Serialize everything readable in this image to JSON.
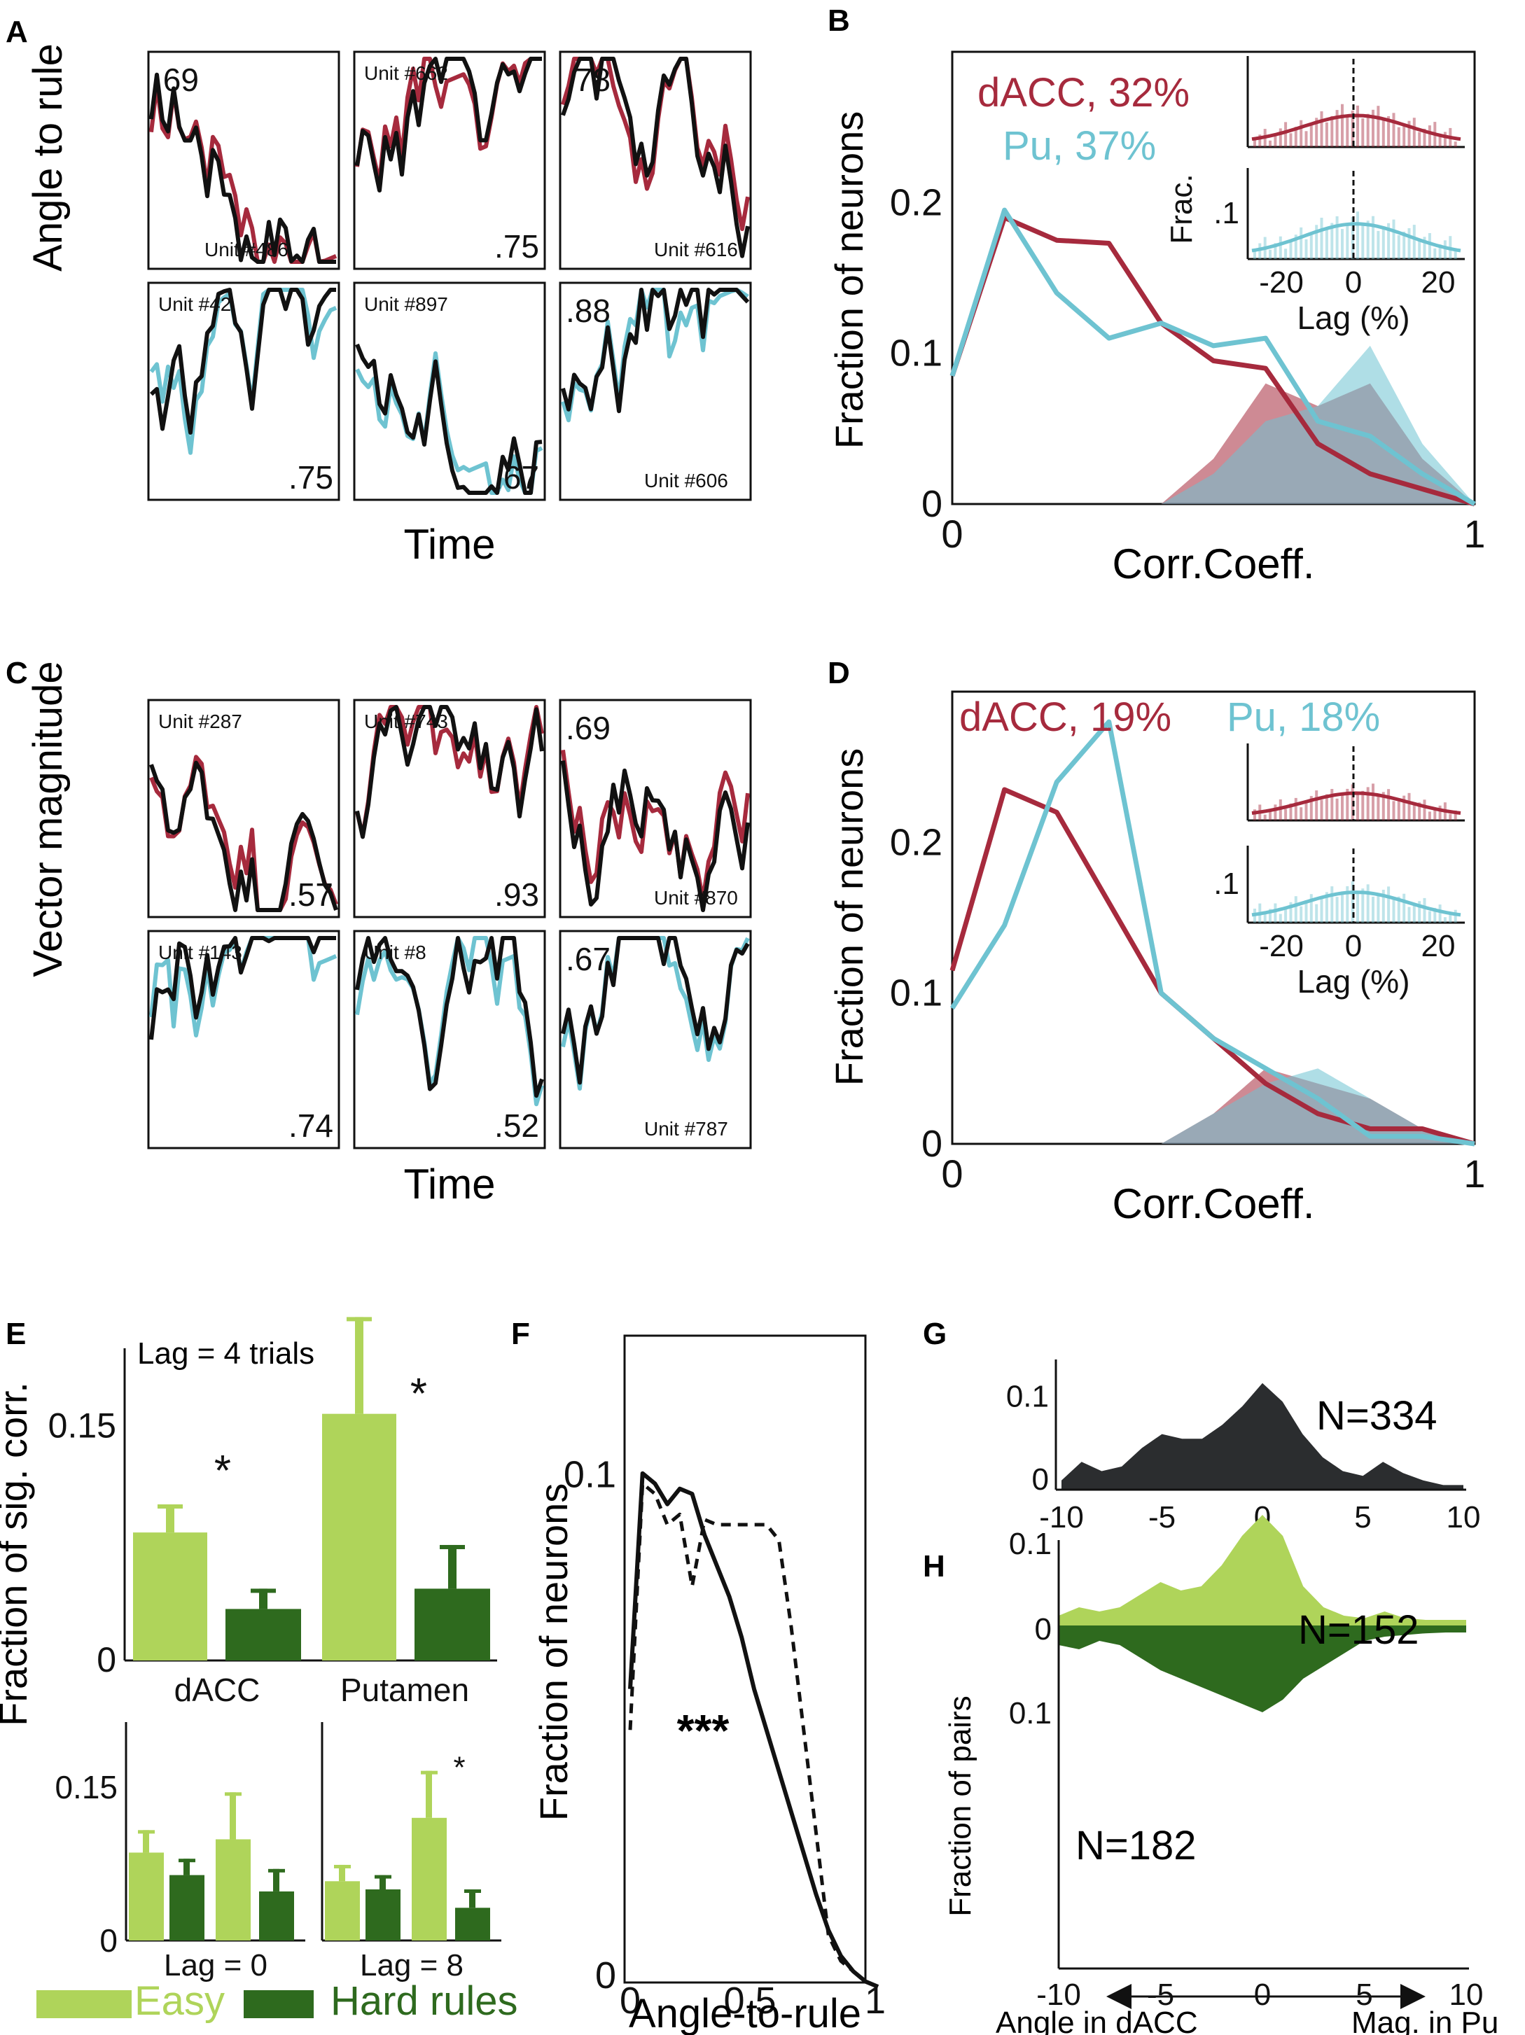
{
  "colors": {
    "dacc": "#A62A3D",
    "pu": "#6EC3D1",
    "easy": "#AFD45A",
    "hard": "#2E6A1E",
    "black": "#111111",
    "overlap": "#7E8E9A",
    "dark_fill": "#2B2D2F"
  },
  "panel_letters": {
    "A": "A",
    "B": "B",
    "C": "C",
    "D": "D",
    "E": "E",
    "F": "F",
    "G": "G",
    "H": "H"
  },
  "A": {
    "ylabel": "Angle to rule",
    "xlabel": "Time",
    "units": [
      {
        "label": "Unit #486",
        "r": ".69",
        "color": "dacc"
      },
      {
        "label": "Unit #662",
        "r": ".75",
        "color": "dacc"
      },
      {
        "label": "Unit #616",
        "r": ".78",
        "color": "dacc"
      },
      {
        "label": "Unit #42",
        "r": ".75",
        "color": "pu"
      },
      {
        "label": "Unit #897",
        "r": ".67",
        "color": "pu"
      },
      {
        "label": "Unit #606",
        "r": ".88",
        "color": "pu"
      }
    ]
  },
  "C": {
    "ylabel": "Vector magnitude",
    "xlabel": "Time",
    "units": [
      {
        "label": "Unit #287",
        "r": ".57",
        "color": "dacc"
      },
      {
        "label": "Unit #743",
        "r": ".93",
        "color": "dacc"
      },
      {
        "label": "Unit #870",
        "r": ".69",
        "color": "dacc"
      },
      {
        "label": "Unit #143",
        "r": ".74",
        "color": "pu"
      },
      {
        "label": "Unit #8",
        "r": ".52",
        "color": "pu"
      },
      {
        "label": "Unit #787",
        "r": ".67",
        "color": "pu"
      }
    ]
  },
  "chart_data": [
    {
      "id": "B",
      "type": "line",
      "xlabel": "Corr.Coeff.",
      "ylabel": "Fraction of neurons",
      "xlim": [
        0,
        1
      ],
      "ylim": [
        0,
        0.3
      ],
      "xticks": [
        "0",
        "1"
      ],
      "yticks": [
        "0",
        "0.1",
        "0.2"
      ],
      "legend": [
        {
          "name": "dACC, 32%",
          "color": "dacc"
        },
        {
          "name": "Pu, 37%",
          "color": "pu"
        }
      ],
      "x": [
        0,
        0.1,
        0.2,
        0.3,
        0.4,
        0.5,
        0.6,
        0.7,
        0.8,
        0.9,
        1.0
      ],
      "series": [
        {
          "name": "dACC, 32%",
          "values": [
            0.085,
            0.19,
            0.175,
            0.173,
            0.12,
            0.095,
            0.09,
            0.04,
            0.02,
            0.01,
            0
          ]
        },
        {
          "name": "Pu, 37%",
          "values": [
            0.085,
            0.195,
            0.14,
            0.11,
            0.12,
            0.105,
            0.11,
            0.055,
            0.045,
            0.02,
            0
          ]
        }
      ],
      "shaded": [
        {
          "name": "dACC",
          "x": [
            0.4,
            0.5,
            0.6,
            0.7,
            0.8,
            0.9,
            1.0
          ],
          "values": [
            0,
            0.03,
            0.08,
            0.065,
            0.08,
            0.03,
            0
          ]
        },
        {
          "name": "Pu",
          "x": [
            0.4,
            0.5,
            0.6,
            0.7,
            0.8,
            0.9,
            1.0
          ],
          "values": [
            0,
            0.02,
            0.055,
            0.065,
            0.105,
            0.04,
            0
          ]
        }
      ],
      "inset": {
        "xlabel": "Lag (%)",
        "ylabel": "Frac.",
        "xticks": [
          "-20",
          "0",
          "20"
        ],
        "ytick": ".1"
      }
    },
    {
      "id": "D",
      "type": "line",
      "xlabel": "Corr.Coeff.",
      "ylabel": "Fraction of neurons",
      "xlim": [
        0,
        1
      ],
      "ylim": [
        0,
        0.3
      ],
      "xticks": [
        "0",
        "1"
      ],
      "yticks": [
        "0",
        "0.1",
        "0.2"
      ],
      "legend": [
        {
          "name": "dACC, 19%",
          "color": "dacc"
        },
        {
          "name": "Pu, 18%",
          "color": "pu"
        }
      ],
      "x": [
        0,
        0.1,
        0.2,
        0.3,
        0.4,
        0.5,
        0.6,
        0.7,
        0.8,
        0.9,
        1.0
      ],
      "series": [
        {
          "name": "dACC, 19%",
          "values": [
            0.115,
            0.235,
            0.22,
            0.16,
            0.1,
            0.07,
            0.04,
            0.02,
            0.01,
            0.01,
            0
          ]
        },
        {
          "name": "Pu, 18%",
          "values": [
            0.09,
            0.145,
            0.24,
            0.28,
            0.1,
            0.07,
            0.05,
            0.03,
            0.005,
            0.005,
            0
          ]
        }
      ],
      "shaded": [
        {
          "name": "dACC",
          "x": [
            0.4,
            0.5,
            0.6,
            0.7,
            0.8,
            0.9,
            1.0
          ],
          "values": [
            0,
            0.02,
            0.05,
            0.04,
            0.03,
            0.01,
            0
          ]
        },
        {
          "name": "Pu",
          "x": [
            0.4,
            0.5,
            0.6,
            0.7,
            0.8,
            0.9,
            1.0
          ],
          "values": [
            0,
            0.02,
            0.04,
            0.05,
            0.03,
            0.01,
            0
          ]
        }
      ],
      "inset": {
        "xlabel": "Lag (%)",
        "ylabel": "",
        "xticks": [
          "-20",
          "0",
          "20"
        ],
        "ytick": ".1"
      }
    },
    {
      "id": "E",
      "type": "bar",
      "ylabel": "Fraction of sig. corr.",
      "annotation": "Lag = 4 trials",
      "categories": [
        "dACC",
        "Putamen"
      ],
      "ylim": [
        0,
        0.2
      ],
      "yticks": [
        "0",
        "0.15"
      ],
      "series": [
        {
          "name": "Easy",
          "values": [
            0.082,
            0.158
          ],
          "errors": [
            0.018,
            0.062
          ]
        },
        {
          "name": "Hard rules",
          "values": [
            0.033,
            0.046
          ],
          "errors": [
            0.013,
            0.028
          ]
        }
      ],
      "significance": [
        "*",
        "*"
      ],
      "subplots": [
        {
          "label": "Lag = 0",
          "yticks": [
            "0",
            "0.15"
          ],
          "easy": [
            0.086,
            0.099
          ],
          "hard": [
            0.064,
            0.048
          ],
          "easy_err": [
            0.022,
            0.046
          ],
          "hard_err": [
            0.016,
            0.022
          ],
          "significance": [
            "",
            ""
          ]
        },
        {
          "label": "Lag = 8",
          "yticks": [],
          "easy": [
            0.058,
            0.12
          ],
          "hard": [
            0.05,
            0.032
          ],
          "easy_err": [
            0.016,
            0.046
          ],
          "hard_err": [
            0.014,
            0.018
          ],
          "significance": [
            "",
            "*"
          ]
        }
      ],
      "legend": [
        {
          "name": "Easy",
          "color": "easy"
        },
        {
          "name": "Hard rules",
          "color": "hard"
        }
      ]
    },
    {
      "id": "F",
      "type": "line",
      "xlabel": "Angle-to-rule",
      "ylabel": "Fraction of neurons",
      "xlim": [
        0,
        1
      ],
      "ylim": [
        0,
        0.12
      ],
      "xticks": [
        "0",
        "0.5",
        "1"
      ],
      "yticks": [
        "0",
        "0.1"
      ],
      "annotation": "***",
      "x": [
        0,
        0.05,
        0.1,
        0.15,
        0.2,
        0.25,
        0.3,
        0.35,
        0.4,
        0.45,
        0.5,
        0.55,
        0.6,
        0.65,
        0.7,
        0.75,
        0.8,
        0.85,
        0.9,
        0.95,
        1.0
      ],
      "series": [
        {
          "name": "solid",
          "values": [
            0.058,
            0.1,
            0.098,
            0.094,
            0.097,
            0.096,
            0.088,
            0.082,
            0.076,
            0.068,
            0.058,
            0.05,
            0.042,
            0.034,
            0.026,
            0.018,
            0.011,
            0.006,
            0.003,
            0.001,
            0.0
          ]
        },
        {
          "name": "dashed",
          "values": [
            0.05,
            0.098,
            0.096,
            0.09,
            0.092,
            0.078,
            0.091,
            0.09,
            0.09,
            0.09,
            0.09,
            0.09,
            0.087,
            0.07,
            0.05,
            0.03,
            0.01,
            0.005,
            0.003,
            0.001,
            0.0
          ]
        }
      ]
    },
    {
      "id": "G",
      "type": "area",
      "xlim": [
        -10,
        10
      ],
      "ylim": [
        0,
        0.13
      ],
      "xticks": [
        "-10",
        "-5",
        "0",
        "5",
        "10"
      ],
      "yticks": [
        "0",
        "0.1"
      ],
      "annotation": "N=334",
      "x": [
        -10,
        -9,
        -8,
        -7,
        -6,
        -5,
        -4,
        -3,
        -2,
        -1,
        0,
        1,
        2,
        3,
        4,
        5,
        6,
        7,
        8,
        9,
        10
      ],
      "values": [
        0.01,
        0.03,
        0.02,
        0.025,
        0.045,
        0.06,
        0.055,
        0.055,
        0.07,
        0.09,
        0.115,
        0.095,
        0.06,
        0.035,
        0.02,
        0.015,
        0.03,
        0.018,
        0.01,
        0.005,
        0.005
      ]
    },
    {
      "id": "H",
      "type": "area",
      "ylabel": "Fraction of pairs",
      "xlim": [
        -10,
        10
      ],
      "ylim": [
        -0.2,
        0.15
      ],
      "xticks": [
        "-10",
        "-5",
        "0",
        "5",
        "10"
      ],
      "yticks": [
        "0.1",
        "0",
        "0.1"
      ],
      "x": [
        -10,
        -9,
        -8,
        -7,
        -6,
        -5,
        -4,
        -3,
        -2,
        -1,
        0,
        1,
        2,
        3,
        4,
        5,
        6,
        7,
        8,
        9,
        10
      ],
      "series": [
        {
          "name": "N=152",
          "values": [
            0.015,
            0.025,
            0.02,
            0.025,
            0.04,
            0.055,
            0.045,
            0.05,
            0.075,
            0.11,
            0.135,
            0.11,
            0.05,
            0.025,
            0.015,
            0.012,
            0.02,
            0.012,
            0.01,
            0.01,
            0.01
          ]
        },
        {
          "name": "N=182",
          "values": [
            -0.02,
            -0.025,
            -0.015,
            -0.02,
            -0.035,
            -0.05,
            -0.06,
            -0.07,
            -0.08,
            -0.09,
            -0.1,
            -0.085,
            -0.06,
            -0.045,
            -0.03,
            -0.015,
            -0.01,
            -0.008,
            -0.006,
            -0.005,
            -0.005
          ]
        }
      ],
      "arrow_left": "Angle in dACC",
      "arrow_right": "Mag. in Pu"
    }
  ]
}
